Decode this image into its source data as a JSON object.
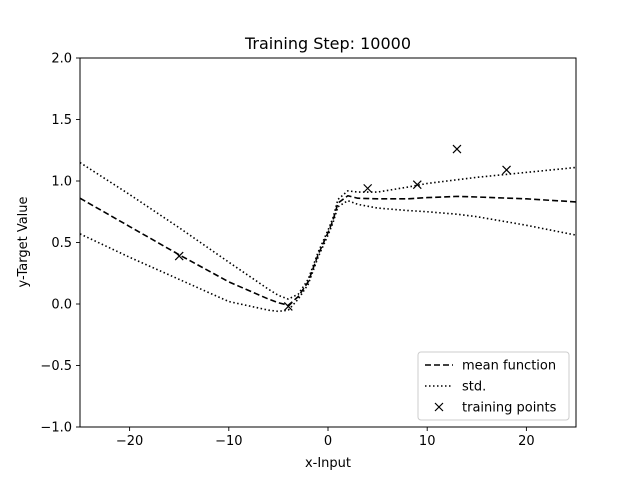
{
  "chart_data": {
    "type": "line",
    "title": "Training Step: 10000",
    "xlabel": "x-Input",
    "ylabel": "y-Target Value",
    "xlim": [
      -25,
      25
    ],
    "ylim": [
      -1.0,
      2.0
    ],
    "xticks": [
      -20,
      -10,
      0,
      10,
      20
    ],
    "xtick_labels": [
      "−20",
      "−10",
      "0",
      "10",
      "20"
    ],
    "yticks": [
      -1.0,
      -0.5,
      0.0,
      0.5,
      1.0,
      1.5,
      2.0
    ],
    "ytick_labels": [
      "−1.0",
      "−0.5",
      "0.0",
      "0.5",
      "1.0",
      "1.5",
      "2.0"
    ],
    "grid": false,
    "legend_position": "lower-right",
    "series": [
      {
        "name": "mean function",
        "style": "dashed",
        "color": "#000000",
        "x": [
          -25,
          -20,
          -15,
          -10,
          -6,
          -5,
          -4,
          -3,
          -2,
          -1,
          0,
          0.5,
          1,
          2,
          3,
          5,
          8,
          10,
          13,
          15,
          20,
          25
        ],
        "y": [
          0.86,
          0.63,
          0.4,
          0.18,
          0.04,
          0.01,
          -0.01,
          0.06,
          0.18,
          0.4,
          0.58,
          0.68,
          0.82,
          0.88,
          0.86,
          0.855,
          0.855,
          0.865,
          0.875,
          0.87,
          0.855,
          0.83
        ]
      },
      {
        "name": "std.",
        "style": "dotted",
        "color": "#000000",
        "x": [
          -25,
          -20,
          -15,
          -10,
          -6,
          -5,
          -4,
          -3,
          -2,
          -1,
          0,
          0.5,
          1,
          2,
          3,
          5,
          8,
          10,
          13,
          15,
          20,
          25
        ],
        "y": [
          1.15,
          0.89,
          0.62,
          0.34,
          0.12,
          0.07,
          0.04,
          0.08,
          0.2,
          0.42,
          0.6,
          0.7,
          0.85,
          0.92,
          0.91,
          0.91,
          0.95,
          0.98,
          1.01,
          1.03,
          1.07,
          1.11
        ]
      },
      {
        "name": "std. (lower)",
        "style": "dotted",
        "color": "#000000",
        "x": [
          -25,
          -20,
          -15,
          -10,
          -6,
          -5,
          -4,
          -3,
          -2,
          -1,
          0,
          0.5,
          1,
          2,
          3,
          5,
          8,
          10,
          13,
          15,
          20,
          25
        ],
        "y": [
          0.57,
          0.38,
          0.2,
          0.02,
          -0.05,
          -0.06,
          -0.05,
          0.04,
          0.16,
          0.38,
          0.56,
          0.66,
          0.79,
          0.84,
          0.81,
          0.78,
          0.76,
          0.75,
          0.73,
          0.71,
          0.64,
          0.56
        ]
      },
      {
        "name": "training points",
        "style": "marker-x",
        "color": "#000000",
        "x": [
          -15,
          -4,
          4,
          9,
          13,
          18
        ],
        "y": [
          0.39,
          -0.02,
          0.94,
          0.97,
          1.26,
          1.09
        ]
      }
    ]
  }
}
